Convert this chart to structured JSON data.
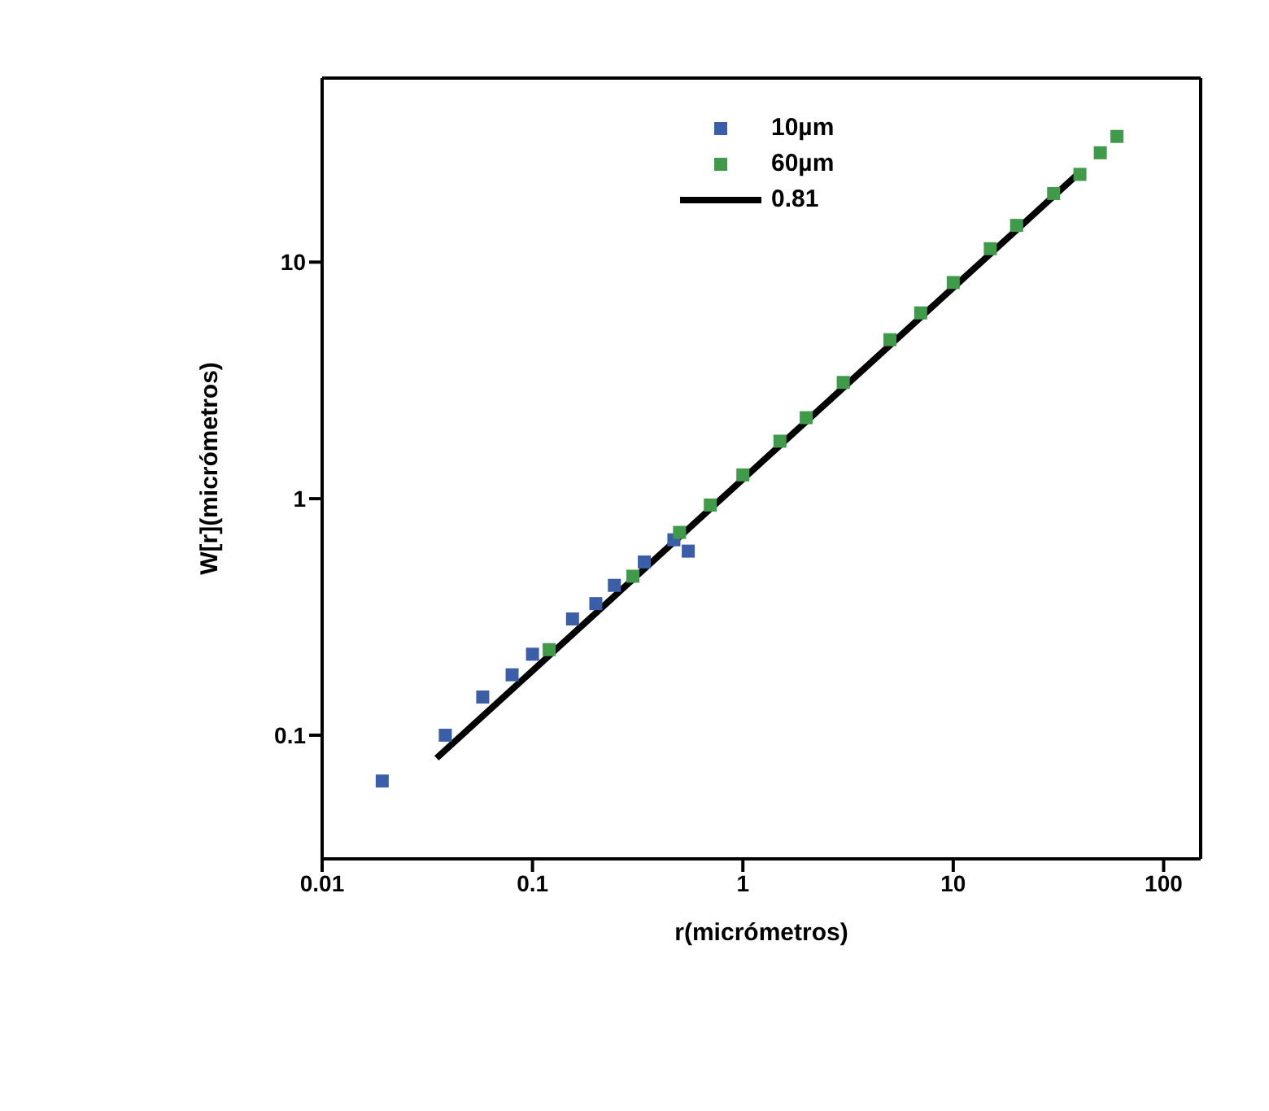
{
  "chart_data": {
    "type": "scatter",
    "xlabel": "r(micrómetros)",
    "ylabel": "W[r](micrómetros)",
    "log": "xy",
    "xlim": [
      0.01,
      150
    ],
    "ylim": [
      0.03,
      60
    ],
    "xticks": [
      0.01,
      0.1,
      1,
      10,
      100
    ],
    "yticks": [
      0.1,
      1,
      10
    ],
    "legend": "top",
    "grid": false,
    "series": [
      {
        "name": "10µm",
        "color": "#3a5ea8",
        "marker": "square",
        "x": [
          0.0193,
          0.0385,
          0.058,
          0.08,
          0.1,
          0.155,
          0.2,
          0.245,
          0.34,
          0.47,
          0.55
        ],
        "values": [
          0.064,
          0.1,
          0.145,
          0.18,
          0.22,
          0.31,
          0.36,
          0.43,
          0.54,
          0.67,
          0.6
        ]
      },
      {
        "name": "60µm",
        "color": "#3f9a4a",
        "marker": "square",
        "x": [
          0.12,
          0.3,
          0.5,
          0.7,
          1,
          1.5,
          2,
          3,
          5,
          7,
          10,
          15,
          20,
          30,
          40,
          50,
          60
        ],
        "values": [
          0.23,
          0.47,
          0.72,
          0.94,
          1.26,
          1.75,
          2.2,
          3.1,
          4.7,
          6.1,
          8.2,
          11.4,
          14.3,
          19.5,
          23.5,
          29,
          34
        ]
      },
      {
        "name": "0.81",
        "type": "line",
        "color": "#000000",
        "x": [
          0.035,
          40
        ],
        "values": [
          0.08,
          24
        ]
      }
    ]
  }
}
